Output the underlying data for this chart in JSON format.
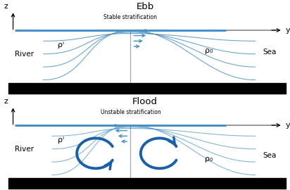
{
  "title_ebb": "Ebb",
  "title_flood": "Flood",
  "subtitle_ebb": "Stable stratification",
  "subtitle_flood": "Unstable stratification",
  "label_river": "River",
  "label_sea": "Sea",
  "label_rho1": "ρᴵ",
  "label_rho0": "ρ₀",
  "label_z": "z",
  "label_y": "y",
  "blue": "#4a90c4",
  "dark_blue": "#1a5fa8",
  "gray": "#888888",
  "black": "#000000",
  "bg": "#ffffff"
}
